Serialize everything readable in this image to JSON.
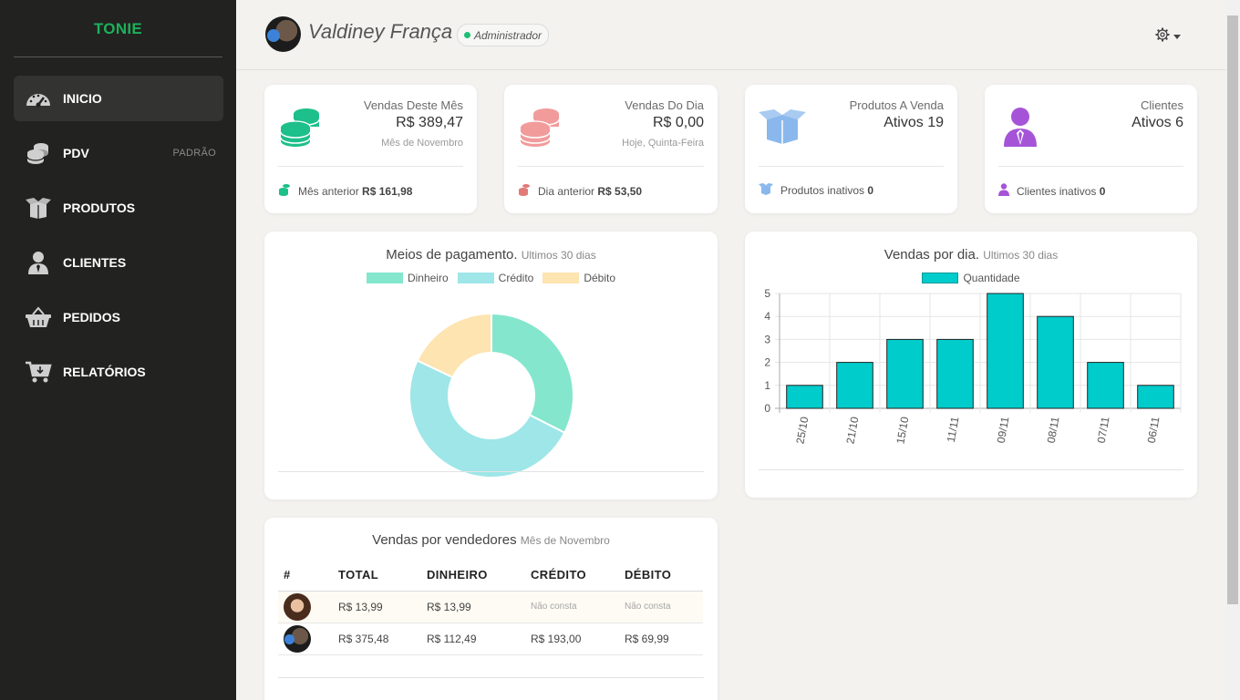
{
  "app": {
    "brand": "TONIE"
  },
  "sidebar": {
    "items": [
      {
        "label": "INICIO",
        "icon": "dashboard-gauge-icon",
        "active": true
      },
      {
        "label": "PDV",
        "icon": "coins-icon",
        "badge": "PADRÃO"
      },
      {
        "label": "PRODUTOS",
        "icon": "open-box-icon"
      },
      {
        "label": "CLIENTES",
        "icon": "user-icon"
      },
      {
        "label": "PEDIDOS",
        "icon": "basket-icon"
      },
      {
        "label": "RELATÓRIOS",
        "icon": "cart-icon"
      }
    ]
  },
  "header": {
    "user_name": "Valdiney França",
    "role": "Administrador",
    "settings_icon": "gear-icon"
  },
  "stats": [
    {
      "title": "Vendas Deste Mês",
      "value": "R$ 389,47",
      "sub": "Mês de Novembro",
      "foot_label": "Mês anterior",
      "foot_value": "R$ 161,98",
      "color": "#1dbf8a",
      "icon": "coins-icon"
    },
    {
      "title": "Vendas Do Dia",
      "value": "R$ 0,00",
      "sub": "Hoje, Quinta-Feira",
      "foot_label": "Dia anterior",
      "foot_value": "R$ 53,50",
      "color": "#f29b9b",
      "icon": "coins-icon"
    },
    {
      "title": "Produtos A Venda",
      "value": "Ativos 19",
      "foot_label": "Produtos inativos",
      "foot_value": "0",
      "color": "#8ab8ec",
      "icon": "open-box-icon"
    },
    {
      "title": "Clientes",
      "value": "Ativos 6",
      "foot_label": "Clientes inativos",
      "foot_value": "0",
      "color": "#a554d8",
      "icon": "user-icon"
    }
  ],
  "payments": {
    "title": "Meios de pagamento.",
    "subtitle": "Ultimos 30 dias"
  },
  "daily": {
    "title": "Vendas por dia.",
    "subtitle": "Ultimos 30 dias"
  },
  "sellers": {
    "title": "Vendas por vendedores",
    "subtitle": "Mês de Novembro",
    "columns": [
      "#",
      "TOTAL",
      "DINHEIRO",
      "CRÉDITO",
      "DÉBITO"
    ],
    "rows": [
      {
        "total": "R$ 13,99",
        "dinheiro": "R$ 13,99",
        "credito": "Não consta",
        "debito": "Não consta"
      },
      {
        "total": "R$ 375,48",
        "dinheiro": "R$ 112,49",
        "credito": "R$ 193,00",
        "debito": "R$ 69,99"
      }
    ]
  },
  "chart_data": [
    {
      "type": "pie",
      "variant": "doughnut",
      "title": "Meios de pagamento.",
      "subtitle": "Ultimos 30 dias",
      "legend_position": "top",
      "labels": [
        "Dinheiro",
        "Crédito",
        "Débito"
      ],
      "values": [
        126.48,
        193.0,
        69.99
      ],
      "colors": [
        "#84e6cd",
        "#9ee6e8",
        "#fde4b0"
      ]
    },
    {
      "type": "bar",
      "title": "Vendas por dia.",
      "subtitle": "Ultimos 30 dias",
      "legend_position": "top",
      "categories": [
        "25/10",
        "21/10",
        "15/10",
        "11/11",
        "09/11",
        "08/11",
        "07/11",
        "06/11"
      ],
      "series": [
        {
          "name": "Quantidade",
          "values": [
            1,
            2,
            3,
            3,
            5,
            4,
            2,
            1
          ]
        }
      ],
      "ylim": [
        0,
        5
      ],
      "yticks": [
        0,
        1,
        2,
        3,
        4,
        5
      ],
      "grid": true,
      "color": "#00cccc"
    }
  ]
}
